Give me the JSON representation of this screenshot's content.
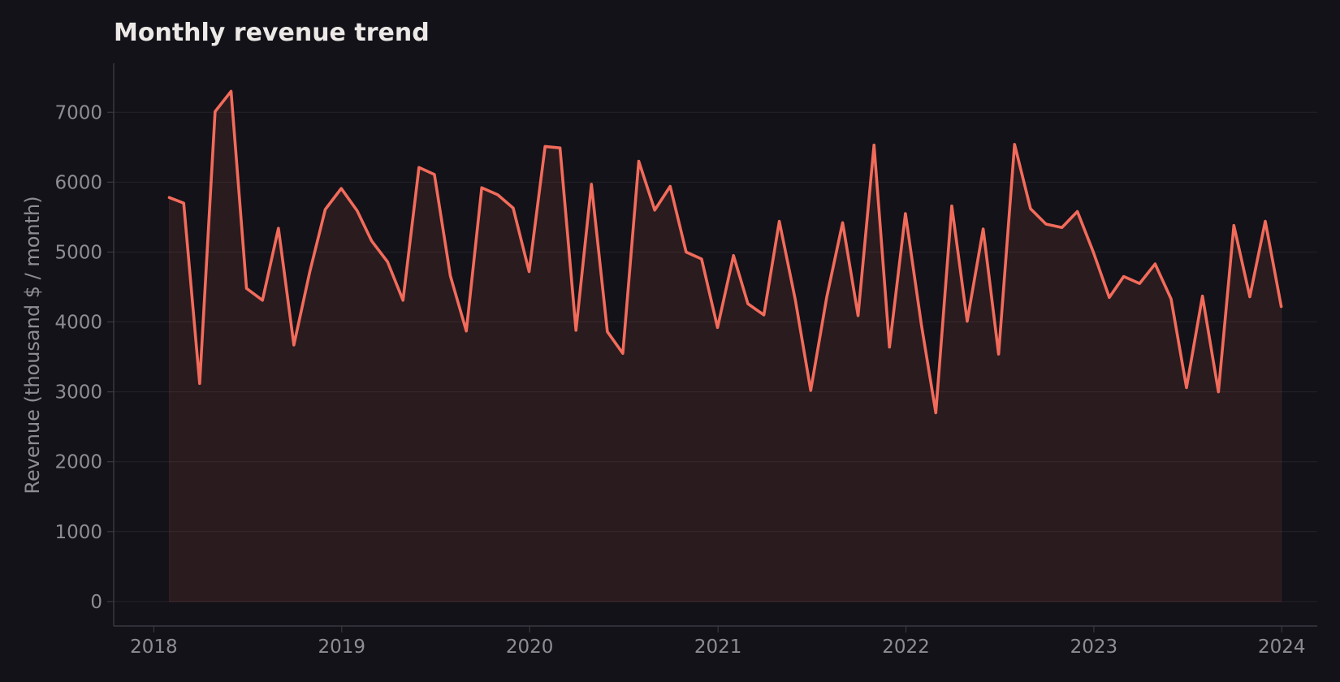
{
  "chart_data": {
    "type": "area",
    "title": "Monthly revenue trend",
    "xlabel": "",
    "ylabel": "Revenue (thousand $ / month)",
    "xlim": [
      "2017-10-15",
      "2024-03-10"
    ],
    "ylim": [
      -350,
      7700
    ],
    "y_ticks": [
      0,
      1000,
      2000,
      3000,
      4000,
      5000,
      6000,
      7000
    ],
    "x_ticks": [
      "2018",
      "2019",
      "2020",
      "2021",
      "2022",
      "2023",
      "2024"
    ],
    "grid": "horizontal",
    "line_color": "#F26B5B",
    "fill_color": "#F26B5B",
    "series": [
      {
        "x": [
          "2018-01-31",
          "2018-02-28",
          "2018-03-31",
          "2018-04-30",
          "2018-05-31",
          "2018-06-30",
          "2018-07-31",
          "2018-08-31",
          "2018-09-30",
          "2018-10-31",
          "2018-11-30",
          "2018-12-31",
          "2019-01-31",
          "2019-02-28",
          "2019-03-31",
          "2019-04-30",
          "2019-05-31",
          "2019-06-30",
          "2019-07-31",
          "2019-08-31",
          "2019-09-30",
          "2019-10-31",
          "2019-11-30",
          "2019-12-31",
          "2020-01-31",
          "2020-02-29",
          "2020-03-31",
          "2020-04-30",
          "2020-05-31",
          "2020-06-30",
          "2020-07-31",
          "2020-08-31",
          "2020-09-30",
          "2020-10-31",
          "2020-11-30",
          "2020-12-31",
          "2021-01-31",
          "2021-02-28",
          "2021-03-31",
          "2021-04-30",
          "2021-05-31",
          "2021-06-30",
          "2021-07-31",
          "2021-08-31",
          "2021-09-30",
          "2021-10-31",
          "2021-11-30",
          "2021-12-31",
          "2022-01-31",
          "2022-02-28",
          "2022-03-31",
          "2022-04-30",
          "2022-05-31",
          "2022-06-30",
          "2022-07-31",
          "2022-08-31",
          "2022-09-30",
          "2022-10-31",
          "2022-11-30",
          "2022-12-31",
          "2023-01-31",
          "2023-02-28",
          "2023-03-31",
          "2023-04-30",
          "2023-05-31",
          "2023-06-30",
          "2023-07-31",
          "2023-08-31",
          "2023-09-30",
          "2023-10-31",
          "2023-11-30",
          "2023-12-31"
        ],
        "values": [
          5780,
          5700,
          3120,
          7010,
          7300,
          4480,
          4310,
          5340,
          3670,
          4720,
          5610,
          5910,
          5590,
          5160,
          4860,
          4310,
          6210,
          6110,
          4660,
          3870,
          5920,
          5820,
          5630,
          4720,
          6510,
          6490,
          3880,
          5970,
          3860,
          3550,
          6300,
          5600,
          5940,
          5000,
          4900,
          3920,
          4950,
          4260,
          4100,
          5440,
          4320,
          3020,
          4350,
          5420,
          4090,
          6530,
          3640,
          5550,
          3960,
          2700,
          5660,
          4010,
          5330,
          3540,
          6540,
          5620,
          5400,
          5350,
          5580,
          5000,
          4350,
          4650,
          4550,
          4830,
          4330,
          3060,
          4370,
          3000,
          5380,
          4360,
          5440,
          4220
        ]
      }
    ]
  }
}
